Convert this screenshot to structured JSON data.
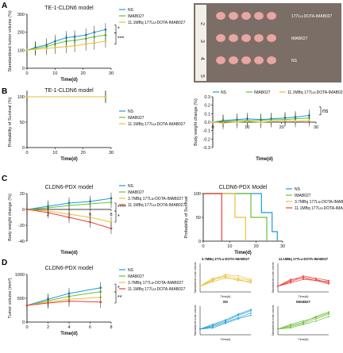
{
  "panels": {
    "A": "A",
    "B": "B",
    "C": "C",
    "D": "D"
  },
  "colors": {
    "ns": "#1e9bd7",
    "imab": "#6cbf3a",
    "lu37": "#e8c03a",
    "lu111": "#e8413a",
    "lu111_yellow": "#e8c03a"
  },
  "photo": {
    "ruler_labels": [
      "2",
      "3",
      "4",
      "5"
    ],
    "row_labels": [
      "177Lu-DOTA-IMAB027",
      "IMAB027",
      "NS"
    ]
  },
  "chart_data": [
    {
      "id": "A",
      "type": "line",
      "title": "TE-1-CLDN6 model",
      "xlabel": "Time(d)",
      "ylabel": "Standardized tumor volume (%)",
      "xlim": [
        0,
        30
      ],
      "ylim": [
        0,
        300
      ],
      "xticks": [
        "0",
        "10",
        "20",
        "30"
      ],
      "yticks": [
        "0",
        "100",
        "200",
        "300"
      ],
      "legend": [
        "NS",
        "IMAB027",
        "11.1MBq 177Lu-DOTA-IMAB027"
      ],
      "sig": [
        "*",
        "***"
      ],
      "x": [
        0,
        3,
        7,
        10,
        14,
        17,
        21,
        24,
        28
      ],
      "series": [
        {
          "name": "NS",
          "values": [
            100,
            115,
            130,
            150,
            170,
            175,
            185,
            200,
            215
          ]
        },
        {
          "name": "IMAB027",
          "values": [
            100,
            110,
            120,
            135,
            150,
            155,
            165,
            175,
            185
          ]
        },
        {
          "name": "11.1MBq 177Lu-DOTA-IMAB027",
          "values": [
            100,
            105,
            110,
            115,
            120,
            125,
            135,
            140,
            150
          ]
        }
      ]
    },
    {
      "id": "B1",
      "type": "line",
      "title": "TE-1-CLDN6 model",
      "xlabel": "Time(d)",
      "ylabel": "Probability of Survival (%)",
      "xlim": [
        0,
        30
      ],
      "ylim": [
        0,
        100
      ],
      "xticks": [
        "0",
        "10",
        "20",
        "30"
      ],
      "yticks": [
        "0",
        "50",
        "100"
      ],
      "legend": [
        "NS",
        "IMAB027",
        "11.1MBq 177Lu-DOTA-IMAB027"
      ],
      "series": [
        {
          "name": "NS",
          "values": [
            100,
            100
          ]
        },
        {
          "name": "IMAB027",
          "values": [
            100,
            100
          ]
        },
        {
          "name": "11.1MBq 177Lu-DOTA-IMAB027",
          "values": [
            100,
            100
          ]
        }
      ],
      "x": [
        0,
        28
      ]
    },
    {
      "id": "B2",
      "type": "line",
      "xlabel": "Time(d)",
      "ylabel": "Body weight change (%)",
      "xlim": [
        0,
        30
      ],
      "ylim": [
        -0.3,
        0.3
      ],
      "xticks": [
        "0",
        "10",
        "20",
        "30"
      ],
      "yticks": [
        "-0.3",
        "-0.2",
        "-0.1",
        "0.0",
        "0.1",
        "0.2",
        "0.3"
      ],
      "legend": [
        "NS",
        "IMAB027",
        "11.1MBq 177Lu-DOTA-IMAB027"
      ],
      "sig": [
        "ns"
      ],
      "x": [
        0,
        3,
        7,
        10,
        14,
        17,
        21,
        24,
        28
      ],
      "series": [
        {
          "name": "NS",
          "values": [
            0.0,
            0.02,
            0.03,
            0.04,
            0.03,
            0.04,
            0.05,
            0.06,
            0.08
          ]
        },
        {
          "name": "IMAB027",
          "values": [
            0.0,
            0.01,
            0.02,
            0.02,
            0.02,
            0.03,
            0.03,
            0.04,
            0.05
          ]
        },
        {
          "name": "11.1MBq 177Lu-DOTA-IMAB027",
          "values": [
            0.0,
            -0.01,
            0.0,
            0.01,
            0.0,
            0.01,
            0.02,
            0.01,
            0.02
          ]
        }
      ]
    },
    {
      "id": "C1",
      "type": "line",
      "title": "CLDN6-PDX model",
      "xlabel": "Time(d)",
      "ylabel": "Body weight change (%)",
      "xlim": [
        0,
        8
      ],
      "ylim": [
        -40,
        20
      ],
      "xticks": [
        "2",
        "4",
        "6",
        "8"
      ],
      "yticks": [
        "-40",
        "-20",
        "0",
        "20"
      ],
      "legend": [
        "NS",
        "IMAB027",
        "3.7MBq 177Lu-DOTA-IMAB027",
        "11.1MBq 177Lu-DOTA-IMAB027"
      ],
      "sig": [
        "****",
        "*"
      ],
      "x": [
        0,
        2,
        4,
        6,
        8
      ],
      "series": [
        {
          "name": "NS",
          "values": [
            0,
            4,
            8,
            10,
            14
          ]
        },
        {
          "name": "IMAB027",
          "values": [
            0,
            2,
            5,
            7,
            9
          ]
        },
        {
          "name": "3.7MBq 177Lu-DOTA-IMAB027",
          "values": [
            0,
            -2,
            -6,
            -10,
            -16
          ]
        },
        {
          "name": "11.1MBq 177Lu-DOTA-IMAB027",
          "values": [
            0,
            -4,
            -10,
            -16,
            -24
          ]
        }
      ]
    },
    {
      "id": "C2",
      "type": "line",
      "title": "CLDN6-PDX Model",
      "xlabel": "Time(d)",
      "ylabel": "Probability of Survival",
      "xlim": [
        0,
        30
      ],
      "ylim": [
        0,
        100
      ],
      "xticks": [
        "0",
        "10",
        "20",
        "30"
      ],
      "yticks": [
        "0",
        "50",
        "100"
      ],
      "legend": [
        "NS",
        "IMAB027",
        "3.7MBq 177Lu-DOTA-IMAB027",
        "11.1MBq 177Lu-DOTA-IMAB027"
      ],
      "series": [
        {
          "name": "NS",
          "steps": [
            [
              0,
              100
            ],
            [
              22,
              100
            ],
            [
              22,
              60
            ],
            [
              26,
              60
            ],
            [
              26,
              20
            ],
            [
              28,
              20
            ],
            [
              28,
              0
            ]
          ]
        },
        {
          "name": "IMAB027",
          "steps": [
            [
              0,
              100
            ],
            [
              18,
              100
            ],
            [
              18,
              50
            ],
            [
              24,
              50
            ],
            [
              24,
              0
            ]
          ]
        },
        {
          "name": "3.7MBq 177Lu-DOTA-IMAB027",
          "steps": [
            [
              0,
              100
            ],
            [
              12,
              100
            ],
            [
              12,
              50
            ],
            [
              16,
              50
            ],
            [
              16,
              0
            ]
          ]
        },
        {
          "name": "11.1MBq 177Lu-DOTA-IMAB027",
          "steps": [
            [
              0,
              100
            ],
            [
              7,
              100
            ],
            [
              7,
              0
            ]
          ]
        }
      ]
    },
    {
      "id": "D",
      "type": "line",
      "title": "CLDN6-PDX model",
      "xlabel": "Time(d)",
      "ylabel": "Tumor volume (mm³)",
      "xlim": [
        0,
        8
      ],
      "ylim": [
        0,
        1000
      ],
      "xticks": [
        "0",
        "2",
        "4",
        "6",
        "8"
      ],
      "yticks": [
        "0",
        "500",
        "1000"
      ],
      "legend": [
        "NS",
        "IMAB027",
        "3.7MBq 177Lu-DOTA-IMAB027",
        "11.1MBq 177Lu-DOTA-IMAB027"
      ],
      "sig": [
        "*",
        "**"
      ],
      "x": [
        0,
        2,
        4,
        7
      ],
      "series": [
        {
          "name": "NS",
          "values": [
            350,
            480,
            600,
            720
          ]
        },
        {
          "name": "IMAB027",
          "values": [
            350,
            450,
            540,
            640
          ]
        },
        {
          "name": "3.7MBq 177Lu-DOTA-IMAB027",
          "values": [
            350,
            420,
            480,
            520
          ]
        },
        {
          "name": "11.1MBq 177Lu-DOTA-IMAB027",
          "values": [
            350,
            400,
            440,
            420
          ]
        }
      ]
    }
  ],
  "mini_charts": [
    {
      "title": "3.7MBq 177Lu-DOTA-IMAB027",
      "ylabel": "Standardized tumor volume",
      "xlabel": "Time(d)",
      "color": "#e8c03a",
      "lines": [
        [
          100,
          160,
          180,
          150,
          140
        ],
        [
          100,
          150,
          200,
          190,
          160
        ],
        [
          100,
          140,
          170,
          160,
          130
        ],
        [
          100,
          170,
          190,
          170,
          150
        ]
      ]
    },
    {
      "title": "11.1MBq 177Lu-DOTA-IMAB027",
      "ylabel": "Standardized tumor volume",
      "xlabel": "Time(d)",
      "color": "#e8413a",
      "lines": [
        [
          100,
          150,
          190,
          170,
          150
        ],
        [
          100,
          140,
          180,
          160,
          130
        ],
        [
          100,
          130,
          160,
          150,
          120
        ],
        [
          100,
          160,
          170,
          150,
          140
        ]
      ]
    },
    {
      "title": "NS",
      "ylabel": "Standardized tumor volume",
      "xlabel": "Time(d)",
      "color": "#1e9bd7",
      "lines": [
        [
          100,
          130,
          170,
          220,
          260
        ],
        [
          100,
          120,
          160,
          200,
          240
        ],
        [
          100,
          140,
          180,
          230,
          270
        ],
        [
          100,
          110,
          150,
          190,
          220
        ]
      ]
    },
    {
      "title": "IMAB027",
      "ylabel": "Standardized tumor volume",
      "xlabel": "Time(d)",
      "color": "#6cbf3a",
      "lines": [
        [
          100,
          130,
          160,
          210,
          250
        ],
        [
          100,
          120,
          150,
          190,
          230
        ],
        [
          100,
          140,
          170,
          200,
          240
        ],
        [
          100,
          110,
          140,
          170,
          210
        ]
      ]
    }
  ]
}
